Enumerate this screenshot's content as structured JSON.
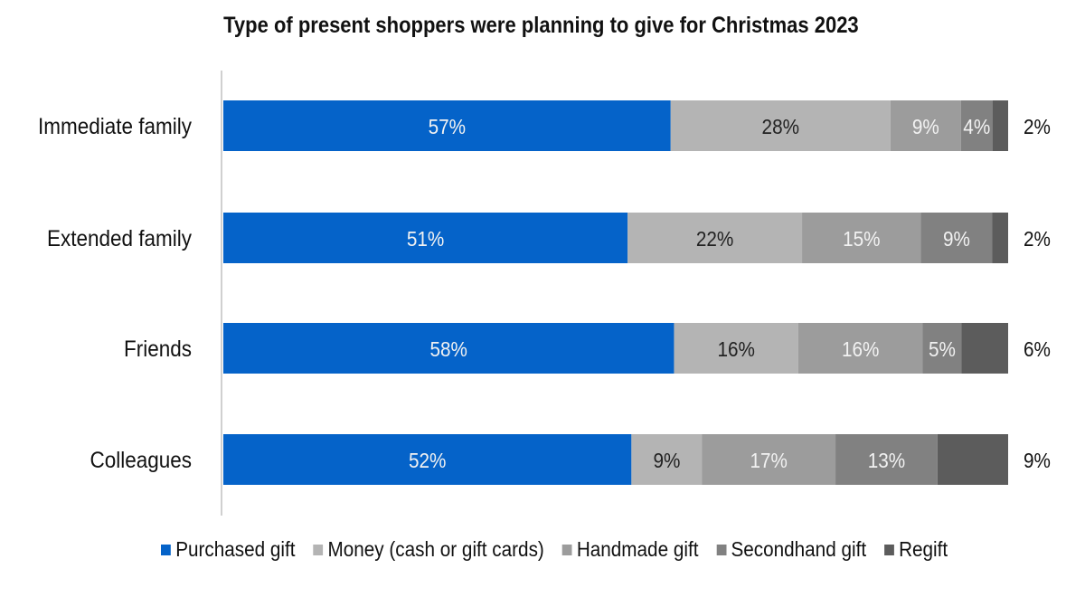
{
  "chart_data": {
    "type": "bar",
    "orientation": "horizontal",
    "stacked": true,
    "title": "Type of present shoppers were planning to give for Christmas 2023",
    "categories": [
      "Immediate family",
      "Extended family",
      "Friends",
      "Colleagues"
    ],
    "series": [
      {
        "name": "Purchased gift",
        "color": "#0563c9",
        "values": [
          57,
          51,
          58,
          52
        ],
        "labels": [
          "57%",
          "51%",
          "58%",
          "52%"
        ]
      },
      {
        "name": "Money (cash or gift cards)",
        "color": "#b4b4b4",
        "values": [
          28,
          22,
          16,
          9
        ],
        "labels": [
          "28%",
          "22%",
          "16%",
          "9%"
        ]
      },
      {
        "name": "Handmade gift",
        "color": "#9c9c9c",
        "values": [
          9,
          15,
          16,
          17
        ],
        "labels": [
          "9%",
          "15%",
          "16%",
          "17%"
        ]
      },
      {
        "name": "Secondhand gift",
        "color": "#818181",
        "values": [
          4,
          9,
          5,
          13
        ],
        "labels": [
          "4%",
          "9%",
          "5%",
          "13%"
        ]
      },
      {
        "name": "Regift",
        "color": "#5c5c5c",
        "values": [
          2,
          2,
          6,
          9
        ],
        "labels": [
          "2%",
          "2%",
          "6%",
          "9%"
        ]
      }
    ],
    "xlim": [
      0,
      100
    ],
    "legend": "bottom",
    "grid": false
  }
}
